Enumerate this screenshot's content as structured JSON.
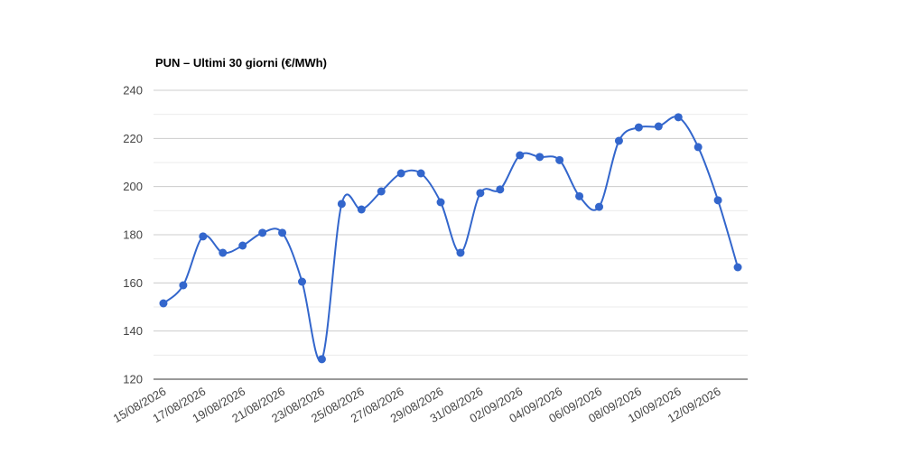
{
  "chart_data": {
    "type": "line",
    "title": "PUN – Ultimi 30 giorni (€/MWh)",
    "categories": [
      "15/08/2026",
      null,
      "17/08/2026",
      null,
      "19/08/2026",
      null,
      "21/08/2026",
      null,
      "23/08/2026",
      null,
      "25/08/2026",
      null,
      "27/08/2026",
      null,
      "29/08/2026",
      null,
      "31/08/2026",
      null,
      "02/09/2026",
      null,
      "04/09/2026",
      null,
      "06/09/2026",
      null,
      "08/09/2026",
      null,
      "10/09/2026",
      null,
      "12/09/2026",
      null
    ],
    "values": [
      151.5,
      159,
      179.3,
      172.5,
      175.5,
      180.8,
      180.8,
      160.5,
      128.3,
      192.8,
      190.5,
      198,
      205.5,
      205.5,
      193.5,
      172.5,
      197.3,
      198.8,
      213,
      212.3,
      211,
      196,
      191.6,
      219,
      224.6,
      225,
      228.8,
      216.4,
      194.3,
      166.5
    ],
    "color": "#3366cc",
    "ylim": [
      120,
      240
    ],
    "yticks": [
      120,
      140,
      160,
      180,
      200,
      220,
      240
    ],
    "grid": true,
    "minor_grid": true,
    "smooth": true
  }
}
